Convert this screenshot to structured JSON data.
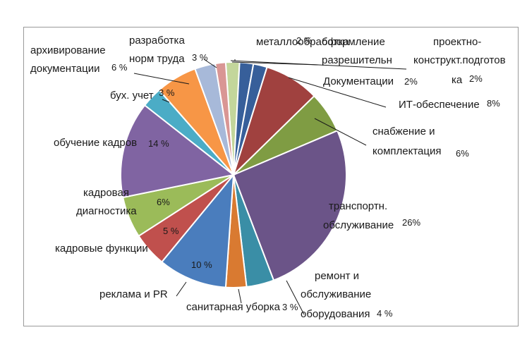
{
  "chart_data": {
    "type": "pie",
    "title": "",
    "slices": [
      {
        "label": [
          "металлообработка"
        ],
        "pct_text": "2 %",
        "value": 2,
        "color": "#c3d69b"
      },
      {
        "label": [
          "оформление",
          "разрешительн",
          "Документации"
        ],
        "pct_text": "2%",
        "value": 2,
        "color": "#375f9a"
      },
      {
        "label": [
          "проектно-",
          "конструкт.подготов",
          "ка"
        ],
        "pct_text": "2%",
        "value": 2,
        "color": "#375f9a"
      },
      {
        "label": [
          "ИТ-обеспечение"
        ],
        "pct_text": "8%",
        "value": 8,
        "color": "#a0413f"
      },
      {
        "label": [
          "снабжение и",
          "комплектация"
        ],
        "pct_text": "6%",
        "value": 6,
        "color": "#7f9c43"
      },
      {
        "label": [
          "транспортн.",
          "обслуживание"
        ],
        "pct_text": "26%",
        "value": 26,
        "color": "#6b5488"
      },
      {
        "label": [
          "ремонт и",
          "обслуживание",
          "оборудования"
        ],
        "pct_text": "4 %",
        "value": 4,
        "color": "#3a8ea6"
      },
      {
        "label": [
          "санитарная уборка"
        ],
        "pct_text": "3 %",
        "value": 3,
        "color": "#d97a31"
      },
      {
        "label": [
          "реклама и PR"
        ],
        "pct_text": "10 %",
        "value": 10,
        "color": "#4a7dbd"
      },
      {
        "label": [
          "кадровые функции"
        ],
        "pct_text": "5 %",
        "value": 5,
        "color": "#c0504d"
      },
      {
        "label": [
          "кадровая",
          "диагностика"
        ],
        "pct_text": "6%",
        "value": 6,
        "color": "#9bbb59"
      },
      {
        "label": [
          "обучение кадров"
        ],
        "pct_text": "14 %",
        "value": 14,
        "color": "#8064a2"
      },
      {
        "label": [
          "бух. учет"
        ],
        "pct_text": "3 %",
        "value": 3,
        "color": "#4bacc6"
      },
      {
        "label": [
          "архивирование",
          "документации"
        ],
        "pct_text": "6 %",
        "value": 6,
        "color": "#f79646"
      },
      {
        "label": [
          "разработка",
          "норм труда"
        ],
        "pct_text": "3 %",
        "value": 3,
        "color": "#a7b9d9"
      },
      {
        "label": [],
        "pct_text": "",
        "value": 1.5,
        "color": "#d99694"
      }
    ]
  }
}
